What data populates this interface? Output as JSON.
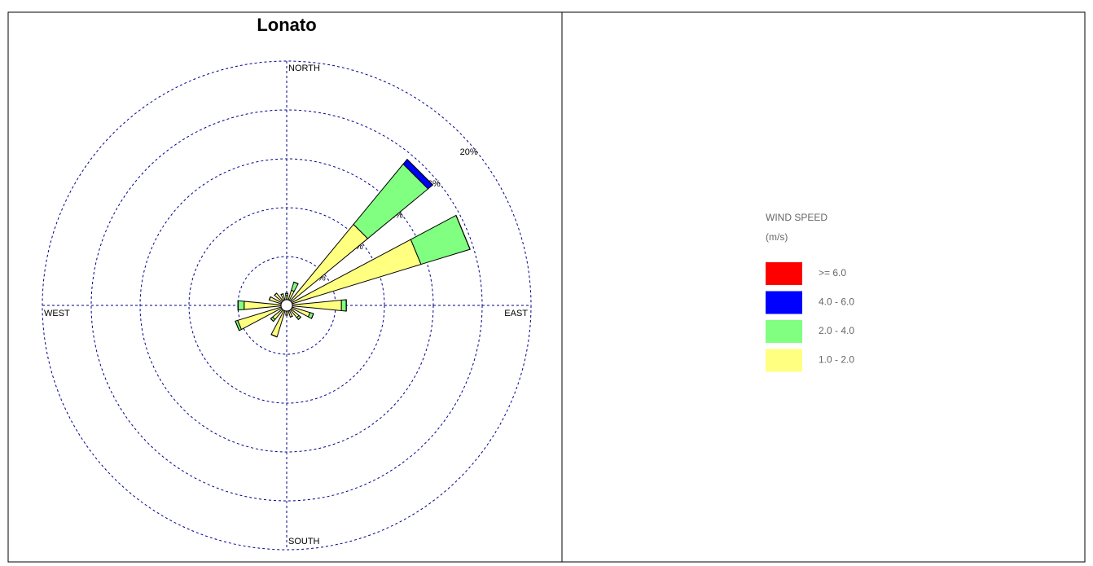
{
  "chart_data": {
    "type": "windrose",
    "title": "Lonato",
    "categories": [
      "NORTH",
      null,
      null,
      null,
      "EAST",
      null,
      null,
      null,
      "SOUTH",
      null,
      null,
      null,
      "WEST",
      null,
      null,
      null
    ],
    "series": [
      {
        "name": ">= 6.0",
        "color": "#ff0000",
        "values": [
          0,
          0,
          0,
          0,
          0,
          0,
          0,
          0,
          0,
          0,
          0,
          0,
          0,
          0,
          0,
          0
        ]
      },
      {
        "name": "4.0 - 6.0",
        "color": "#0000ff",
        "values": [
          0,
          0,
          0.5,
          0,
          0,
          0,
          0,
          0,
          0,
          0,
          0,
          0,
          0,
          0,
          0,
          0
        ]
      },
      {
        "name": "2.0 - 4.0",
        "color": "#80ff80",
        "values": [
          0.2,
          0.7,
          6.4,
          4.2,
          0.4,
          0.3,
          0.2,
          0,
          0,
          0,
          0.2,
          0.2,
          0.5,
          0,
          0,
          0
        ]
      },
      {
        "name": "1.0 - 2.0",
        "color": "#ffff80",
        "values": [
          0.8,
          1.3,
          8.6,
          11.5,
          4.5,
          2.0,
          1.3,
          1.0,
          0.8,
          2.7,
          1.5,
          4.2,
          3.5,
          1.5,
          1.3,
          1.0
        ]
      }
    ],
    "rlim": [
      0,
      20
    ],
    "rticks": [
      {
        "value": 4,
        "label": "4%"
      },
      {
        "value": 8,
        "label": "8%"
      },
      {
        "value": 12,
        "label": "12%"
      },
      {
        "value": 16,
        "label": "16%"
      },
      {
        "value": 20,
        "label": "20%"
      }
    ],
    "legend_title": "WIND SPEED",
    "legend_unit": "(m/s)"
  }
}
